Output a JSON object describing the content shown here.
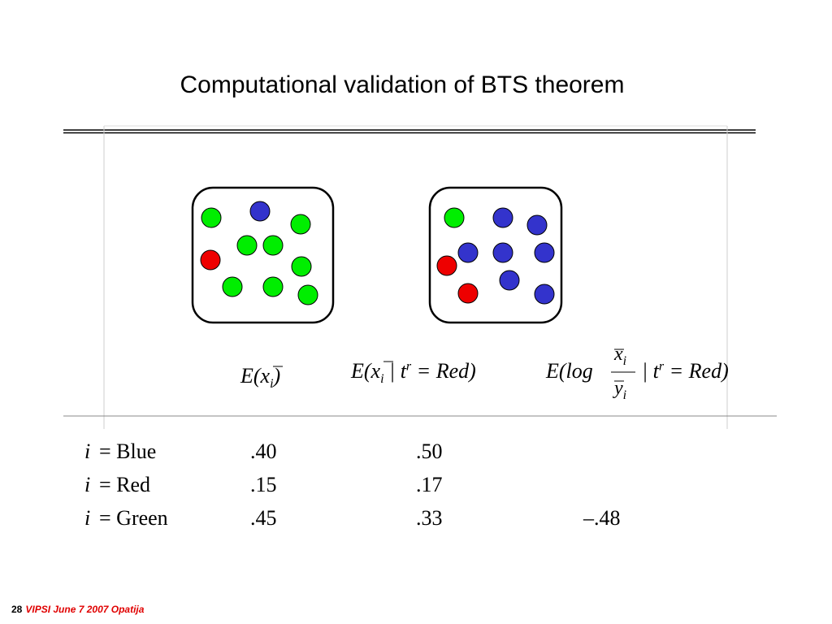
{
  "title": "Computational validation of BTS theorem",
  "headers": [
    [
      "E(",
      "x",
      "i",
      ")"
    ],
    [
      "E(",
      "x",
      "i",
      "| t",
      "r",
      "= Red)"
    ],
    [
      "E(log",
      "x",
      "i",
      "y",
      "i",
      "| t",
      "r",
      "= Red)"
    ]
  ],
  "rows": [
    {
      "var": "i",
      "name": "= Blue",
      "cells": [
        ".40",
        ".50"
      ]
    },
    {
      "var": "i",
      "name": "= Red",
      "cells": [
        ".15",
        ".17"
      ]
    },
    {
      "var": "i",
      "name": "= Green",
      "cells": [
        ".45",
        ".33",
        "–.48"
      ]
    }
  ],
  "footer": {
    "page": "28",
    "text": "VIPSI June 7 2007 Opatija"
  }
}
